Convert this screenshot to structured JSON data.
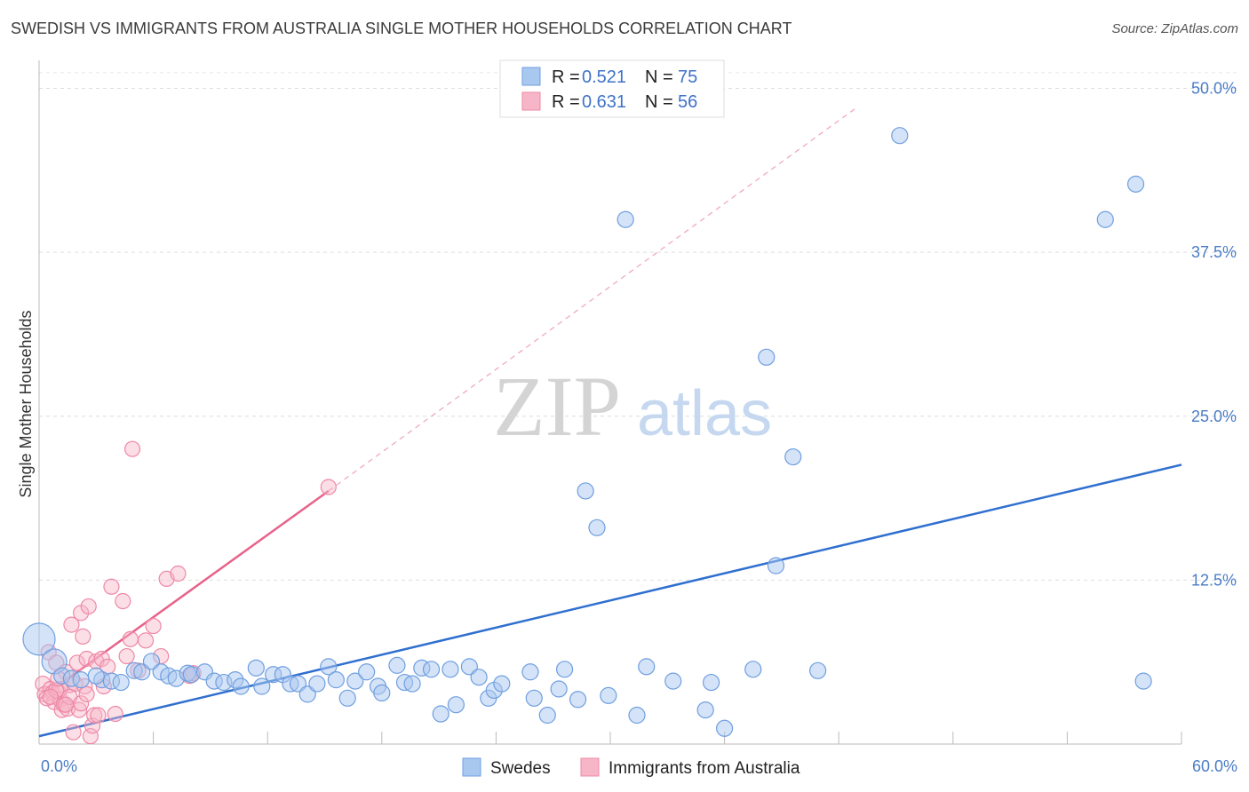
{
  "chart_data": {
    "type": "scatter",
    "title": "SWEDISH VS IMMIGRANTS FROM AUSTRALIA SINGLE MOTHER HOUSEHOLDS CORRELATION CHART",
    "source": "Source: ZipAtlas.com",
    "ylabel": "Single Mother Households",
    "xlim": [
      0,
      60
    ],
    "ylim": [
      0,
      52
    ],
    "x_tick_labels": [
      "0.0%",
      "60.0%"
    ],
    "y_ticks": [
      12.5,
      25.0,
      37.5,
      50.0
    ],
    "y_tick_labels": [
      "12.5%",
      "25.0%",
      "37.5%",
      "50.0%"
    ],
    "grid": true,
    "watermark": {
      "zip": "ZIP",
      "atlas": "atlas"
    },
    "legend": {
      "placement": "top-center",
      "rows": [
        {
          "r_label": "R = ",
          "r_value": "0.521",
          "n_label": "N = ",
          "n_value": "75"
        },
        {
          "r_label": "R = ",
          "r_value": "0.631",
          "n_label": "N = ",
          "n_value": "56"
        }
      ]
    },
    "colors": {
      "swedes_fill": "#a9c8f0",
      "swedes_stroke": "#6f9fe0",
      "swedes_line": "#2f6fcf",
      "aus_fill": "#f6b6c8",
      "aus_stroke": "#ee88a6",
      "aus_line": "#e8628a"
    },
    "series": [
      {
        "name": "Swedes",
        "trend": {
          "x0": 0,
          "y0": 0.6,
          "x1": 60,
          "y1": 21.3
        },
        "points": [
          [
            0.0,
            8.0
          ],
          [
            0.8,
            6.3
          ],
          [
            1.2,
            5.2
          ],
          [
            1.7,
            5.0
          ],
          [
            2.2,
            4.9
          ],
          [
            3.3,
            4.9
          ],
          [
            3.8,
            4.8
          ],
          [
            4.3,
            4.7
          ],
          [
            5.0,
            5.6
          ],
          [
            5.4,
            5.5
          ],
          [
            5.9,
            6.3
          ],
          [
            6.4,
            5.5
          ],
          [
            6.8,
            5.2
          ],
          [
            7.2,
            5.0
          ],
          [
            7.8,
            5.4
          ],
          [
            8.0,
            5.3
          ],
          [
            8.7,
            5.5
          ],
          [
            9.2,
            4.8
          ],
          [
            9.7,
            4.7
          ],
          [
            10.3,
            4.9
          ],
          [
            10.6,
            4.4
          ],
          [
            11.4,
            5.8
          ],
          [
            11.7,
            4.4
          ],
          [
            12.3,
            5.3
          ],
          [
            12.8,
            5.3
          ],
          [
            13.2,
            4.6
          ],
          [
            13.6,
            4.6
          ],
          [
            14.1,
            3.8
          ],
          [
            14.6,
            4.6
          ],
          [
            15.2,
            5.9
          ],
          [
            15.6,
            4.9
          ],
          [
            16.2,
            3.5
          ],
          [
            16.6,
            4.8
          ],
          [
            17.2,
            5.5
          ],
          [
            17.8,
            4.4
          ],
          [
            18.0,
            3.9
          ],
          [
            18.8,
            6.0
          ],
          [
            19.2,
            4.7
          ],
          [
            19.6,
            4.6
          ],
          [
            20.1,
            5.8
          ],
          [
            20.6,
            5.7
          ],
          [
            21.1,
            2.3
          ],
          [
            21.6,
            5.7
          ],
          [
            21.9,
            3.0
          ],
          [
            22.6,
            5.9
          ],
          [
            23.1,
            5.1
          ],
          [
            23.6,
            3.5
          ],
          [
            23.9,
            4.1
          ],
          [
            24.3,
            4.6
          ],
          [
            25.8,
            5.5
          ],
          [
            26.0,
            3.5
          ],
          [
            26.7,
            2.2
          ],
          [
            27.3,
            4.2
          ],
          [
            27.6,
            5.7
          ],
          [
            28.3,
            3.4
          ],
          [
            28.7,
            19.3
          ],
          [
            29.3,
            16.5
          ],
          [
            29.9,
            3.7
          ],
          [
            30.8,
            40.0
          ],
          [
            31.4,
            2.2
          ],
          [
            31.9,
            5.9
          ],
          [
            33.3,
            4.8
          ],
          [
            35.0,
            2.6
          ],
          [
            35.3,
            4.7
          ],
          [
            36.0,
            1.2
          ],
          [
            37.5,
            5.7
          ],
          [
            38.2,
            29.5
          ],
          [
            38.7,
            13.6
          ],
          [
            39.6,
            21.9
          ],
          [
            40.9,
            5.6
          ],
          [
            45.2,
            46.4
          ],
          [
            56.0,
            40.0
          ],
          [
            57.6,
            42.7
          ],
          [
            58.0,
            4.8
          ],
          [
            3.0,
            5.2
          ]
        ]
      },
      {
        "name": "Immigrants from Australia",
        "trend": {
          "x0": 0,
          "y0": 3.4,
          "x1": 15.2,
          "y1": 19.3
        },
        "trend_dash_end": {
          "x": 43.0,
          "y": 48.6
        },
        "points": [
          [
            0.2,
            4.6
          ],
          [
            0.3,
            3.8
          ],
          [
            0.5,
            7.0
          ],
          [
            0.6,
            4.2
          ],
          [
            0.7,
            3.9
          ],
          [
            0.8,
            3.2
          ],
          [
            0.9,
            6.2
          ],
          [
            1.0,
            4.0
          ],
          [
            1.1,
            3.4
          ],
          [
            1.2,
            2.6
          ],
          [
            1.3,
            3.0
          ],
          [
            1.4,
            5.5
          ],
          [
            1.5,
            2.7
          ],
          [
            1.6,
            4.5
          ],
          [
            1.7,
            9.1
          ],
          [
            1.8,
            0.9
          ],
          [
            1.9,
            4.6
          ],
          [
            2.0,
            6.2
          ],
          [
            2.1,
            2.6
          ],
          [
            2.2,
            10.0
          ],
          [
            2.3,
            8.2
          ],
          [
            2.4,
            4.4
          ],
          [
            2.5,
            6.5
          ],
          [
            2.6,
            10.5
          ],
          [
            2.7,
            0.6
          ],
          [
            2.8,
            1.4
          ],
          [
            2.9,
            2.2
          ],
          [
            3.0,
            6.3
          ],
          [
            3.1,
            2.2
          ],
          [
            3.3,
            6.5
          ],
          [
            3.6,
            5.9
          ],
          [
            3.8,
            12.0
          ],
          [
            4.0,
            2.3
          ],
          [
            4.4,
            10.9
          ],
          [
            4.6,
            6.7
          ],
          [
            4.8,
            8.0
          ],
          [
            4.9,
            22.5
          ],
          [
            5.2,
            5.6
          ],
          [
            5.6,
            7.9
          ],
          [
            6.0,
            9.0
          ],
          [
            6.4,
            6.7
          ],
          [
            6.7,
            12.6
          ],
          [
            7.3,
            13.0
          ],
          [
            7.9,
            5.2
          ],
          [
            8.1,
            5.4
          ],
          [
            15.2,
            19.6
          ],
          [
            0.4,
            3.5
          ],
          [
            1.1,
            4.2
          ],
          [
            0.9,
            4.1
          ],
          [
            1.6,
            3.6
          ],
          [
            2.2,
            3.1
          ],
          [
            1.4,
            3.0
          ],
          [
            0.6,
            3.6
          ],
          [
            1.0,
            5.0
          ],
          [
            2.5,
            3.8
          ],
          [
            3.4,
            4.4
          ]
        ]
      }
    ]
  }
}
